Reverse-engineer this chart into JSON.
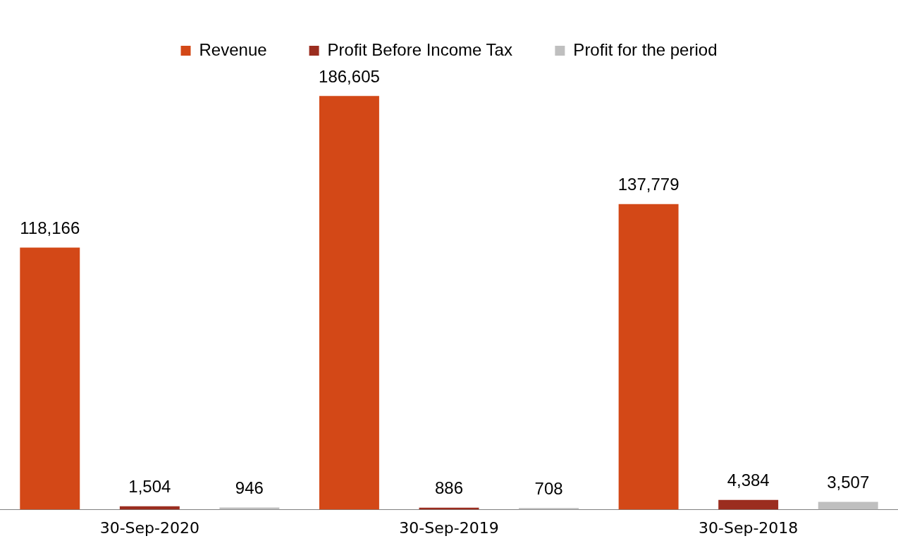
{
  "chart_data": {
    "type": "bar",
    "categories": [
      "30-Sep-2020",
      "30-Sep-2019",
      "30-Sep-2018"
    ],
    "series": [
      {
        "name": "Revenue",
        "color": "#d34817",
        "values": [
          118166,
          186605,
          137779
        ],
        "value_labels": [
          "118,166",
          "186,605",
          "137,779"
        ]
      },
      {
        "name": "Profit Before Income Tax",
        "color": "#9b2d1f",
        "values": [
          1504,
          886,
          4384
        ],
        "value_labels": [
          "1,504",
          "886",
          "4,384"
        ]
      },
      {
        "name": "Profit for the period",
        "color": "#bfbfbf",
        "values": [
          946,
          708,
          3507
        ],
        "value_labels": [
          "946",
          "708",
          "3,507"
        ]
      }
    ],
    "legend": "top",
    "grid": false,
    "tick_labels": "x"
  }
}
